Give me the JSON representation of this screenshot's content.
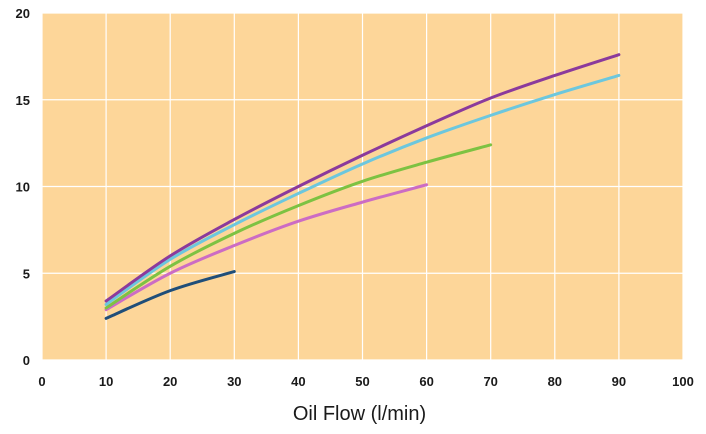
{
  "chart_data": {
    "type": "line",
    "title": "",
    "xlabel": "Oil Flow (l/min)",
    "ylabel": "",
    "xlim": [
      0,
      100
    ],
    "ylim": [
      0,
      20
    ],
    "x_ticks": [
      0,
      10,
      20,
      30,
      40,
      50,
      60,
      70,
      80,
      90,
      100
    ],
    "y_ticks": [
      0,
      5,
      10,
      15,
      20
    ],
    "grid": true,
    "legend": "none",
    "colors": {
      "plot_background": "#FDD699",
      "grid": "#FFFFFF"
    },
    "series": [
      {
        "color": "#1F4E79",
        "points": [
          [
            10,
            2.4
          ],
          [
            20,
            4.0
          ],
          [
            30,
            5.1
          ]
        ]
      },
      {
        "color": "#CC6CC4",
        "points": [
          [
            10,
            2.9
          ],
          [
            20,
            5.0
          ],
          [
            30,
            6.6
          ],
          [
            40,
            8.0
          ],
          [
            50,
            9.1
          ],
          [
            60,
            10.1
          ]
        ]
      },
      {
        "color": "#7DC242",
        "points": [
          [
            10,
            3.0
          ],
          [
            20,
            5.4
          ],
          [
            30,
            7.3
          ],
          [
            40,
            8.9
          ],
          [
            50,
            10.3
          ],
          [
            60,
            11.4
          ],
          [
            70,
            12.4
          ]
        ]
      },
      {
        "color": "#6CC7DE",
        "points": [
          [
            10,
            3.2
          ],
          [
            20,
            5.8
          ],
          [
            30,
            7.8
          ],
          [
            40,
            9.6
          ],
          [
            50,
            11.3
          ],
          [
            60,
            12.8
          ],
          [
            70,
            14.1
          ],
          [
            80,
            15.3
          ],
          [
            90,
            16.4
          ]
        ]
      },
      {
        "color": "#8B3A9C",
        "points": [
          [
            10,
            3.4
          ],
          [
            20,
            6.0
          ],
          [
            30,
            8.1
          ],
          [
            40,
            10.0
          ],
          [
            50,
            11.8
          ],
          [
            60,
            13.5
          ],
          [
            70,
            15.1
          ],
          [
            80,
            16.4
          ],
          [
            90,
            17.6
          ]
        ]
      }
    ]
  }
}
